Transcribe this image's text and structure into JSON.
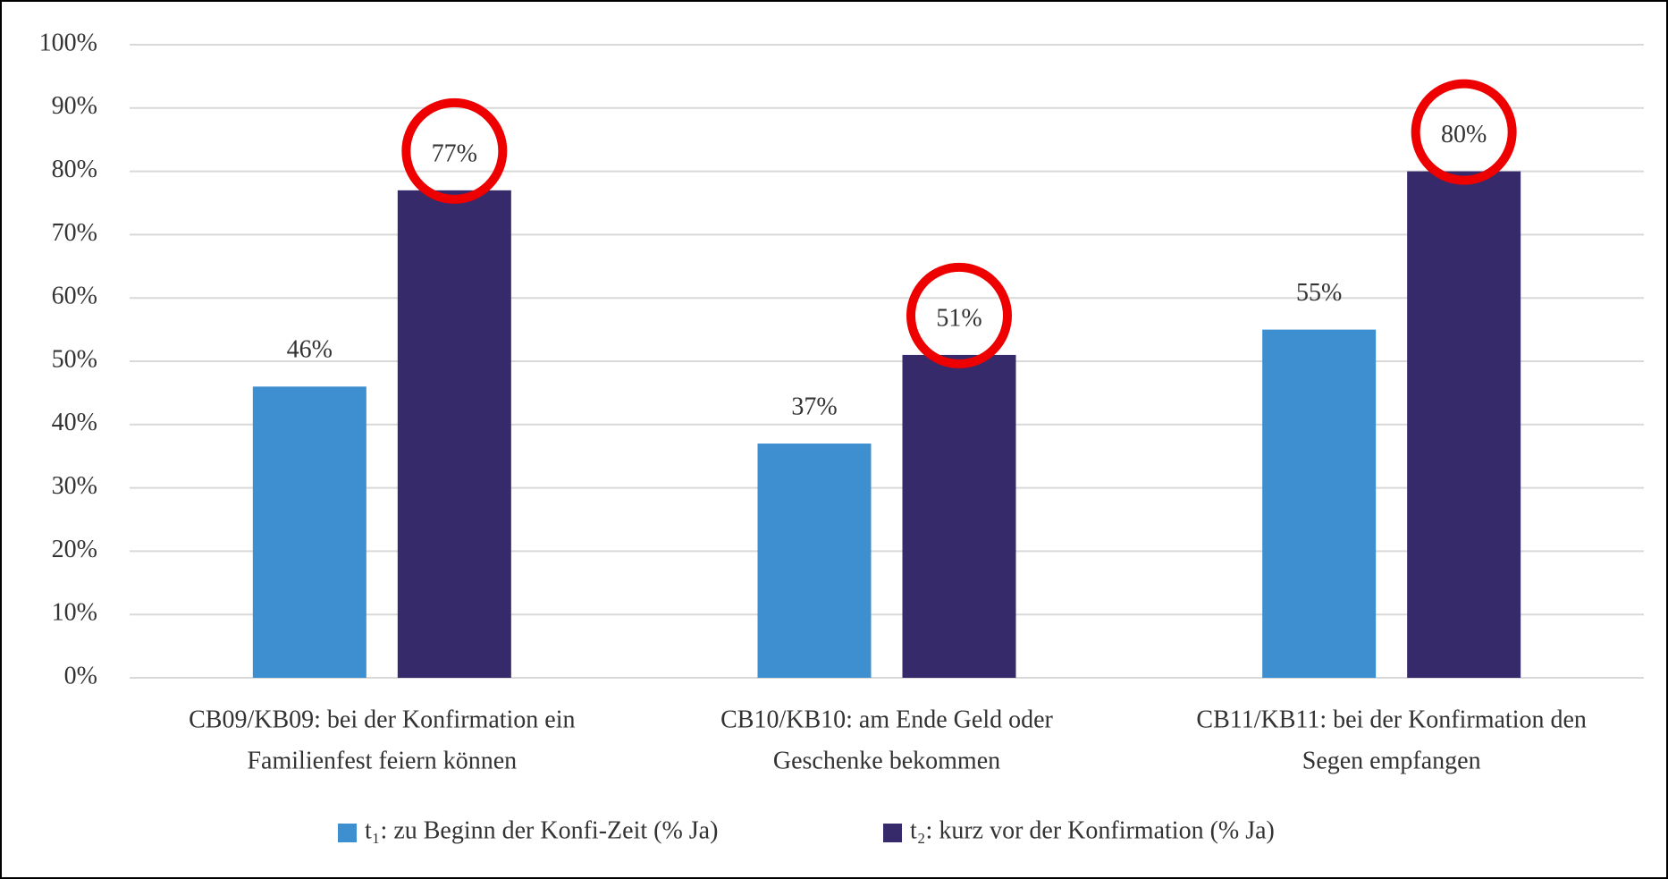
{
  "chart_data": {
    "type": "bar",
    "categories": [
      [
        "CB09/KB09: bei der Konfirmation ein",
        "Familienfest feiern können"
      ],
      [
        "CB10/KB10: am Ende Geld oder",
        "Geschenke bekommen"
      ],
      [
        "CB11/KB11: bei der Konfirmation den",
        "Segen empfangen"
      ]
    ],
    "series": [
      {
        "name": "t₁: zu Beginn der Konfi-Zeit (% Ja)",
        "color": "#3d8fd0",
        "values": [
          46,
          37,
          55
        ],
        "value_labels": [
          "46%",
          "37%",
          "55%"
        ]
      },
      {
        "name": "t₂: kurz vor der Konfirmation (% Ja)",
        "color": "#372a6b",
        "values": [
          77,
          51,
          80
        ],
        "value_labels": [
          "77%",
          "51%",
          "80%"
        ]
      }
    ],
    "ylim": [
      0,
      100
    ],
    "yticks": [
      {
        "value": 0,
        "label": "0%"
      },
      {
        "value": 10,
        "label": "10%"
      },
      {
        "value": 20,
        "label": "20%"
      },
      {
        "value": 30,
        "label": "30%"
      },
      {
        "value": 40,
        "label": "40%"
      },
      {
        "value": 50,
        "label": "50%"
      },
      {
        "value": 60,
        "label": "60%"
      },
      {
        "value": 70,
        "label": "70%"
      },
      {
        "value": 80,
        "label": "80%"
      },
      {
        "value": 90,
        "label": "90%"
      },
      {
        "value": 100,
        "label": "100%"
      }
    ],
    "grid": true,
    "legend": "bottom"
  }
}
